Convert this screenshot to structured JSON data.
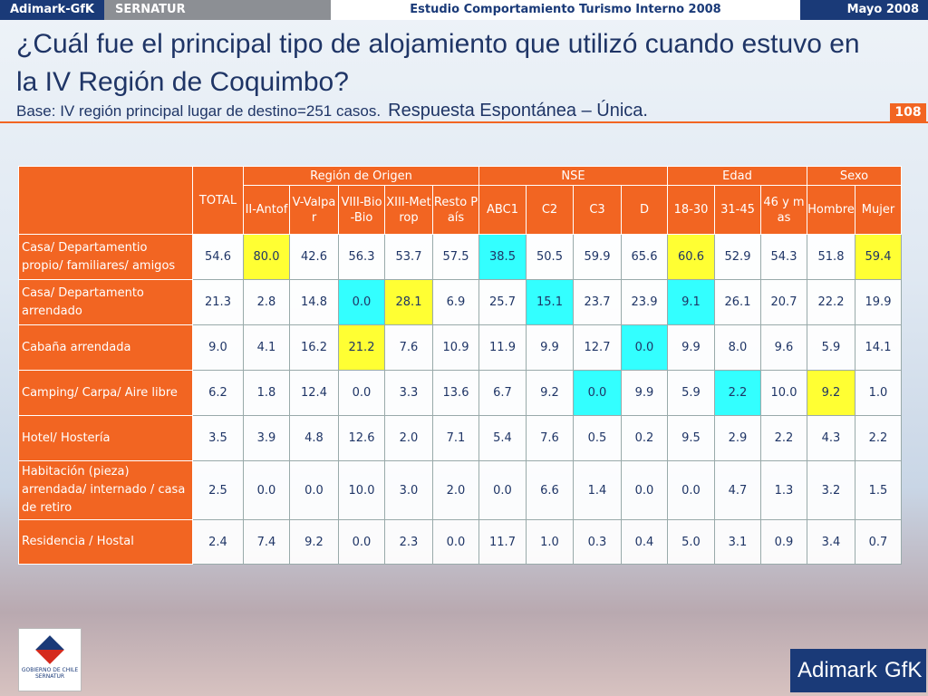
{
  "header": {
    "company": "Adimark-GfK",
    "client": "SERNATUR",
    "study": "Estudio Comportamiento Turismo Interno 2008",
    "date": "Mayo 2008"
  },
  "title": "¿Cuál fue el principal tipo de alojamiento que utilizó cuando estuvo en la IV Región de Coquimbo?",
  "subtitle": {
    "base": "Base: IV región principal lugar de destino=251 casos.",
    "note": "Respuesta Espontánea – Única."
  },
  "page_number": "108",
  "table": {
    "total_header": "TOTAL",
    "groups": [
      {
        "label": "Región de Origen",
        "span": 5
      },
      {
        "label": "NSE",
        "span": 4
      },
      {
        "label": "Edad",
        "span": 3
      },
      {
        "label": "Sexo",
        "span": 2
      }
    ],
    "columns": [
      "II-Antof",
      "V-Valpar",
      "VIII-Bio-Bio",
      "XIII-Metrop",
      "Resto País",
      "ABC1",
      "C2",
      "C3",
      "D",
      "18-30",
      "31-45",
      "46 y mas",
      "Hombre",
      "Mujer"
    ],
    "rows": [
      {
        "label": "Casa/ Departamentio propio/ familiares/ amigos",
        "values": [
          "54.6",
          "80.0",
          "42.6",
          "56.3",
          "53.7",
          "57.5",
          "38.5",
          "50.5",
          "59.9",
          "65.6",
          "60.6",
          "52.9",
          "54.3",
          "51.8",
          "59.4"
        ]
      },
      {
        "label": "Casa/ Departamento arrendado",
        "values": [
          "21.3",
          "2.8",
          "14.8",
          "0.0",
          "28.1",
          "6.9",
          "25.7",
          "15.1",
          "23.7",
          "23.9",
          "9.1",
          "26.1",
          "20.7",
          "22.2",
          "19.9"
        ]
      },
      {
        "label": "Cabaña arrendada",
        "values": [
          "9.0",
          "4.1",
          "16.2",
          "21.2",
          "7.6",
          "10.9",
          "11.9",
          "9.9",
          "12.7",
          "0.0",
          "9.9",
          "8.0",
          "9.6",
          "5.9",
          "14.1"
        ]
      },
      {
        "label": "Camping/ Carpa/ Aire libre",
        "values": [
          "6.2",
          "1.8",
          "12.4",
          "0.0",
          "3.3",
          "13.6",
          "6.7",
          "9.2",
          "0.0",
          "9.9",
          "5.9",
          "2.2",
          "10.0",
          "9.2",
          "1.0"
        ]
      },
      {
        "label": "Hotel/ Hostería",
        "values": [
          "3.5",
          "3.9",
          "4.8",
          "12.6",
          "2.0",
          "7.1",
          "5.4",
          "7.6",
          "0.5",
          "0.2",
          "9.5",
          "2.9",
          "2.2",
          "4.3",
          "2.2"
        ]
      },
      {
        "label": "Habitación (pieza) arrendada/ internado / casa de retiro",
        "values": [
          "2.5",
          "0.0",
          "0.0",
          "10.0",
          "3.0",
          "2.0",
          "0.0",
          "6.6",
          "1.4",
          "0.0",
          "0.0",
          "4.7",
          "1.3",
          "3.2",
          "1.5"
        ]
      },
      {
        "label": "Residencia / Hostal",
        "values": [
          "2.4",
          "7.4",
          "9.2",
          "0.0",
          "2.3",
          "0.0",
          "11.7",
          "1.0",
          "0.3",
          "0.4",
          "5.0",
          "3.1",
          "0.9",
          "3.4",
          "0.7"
        ]
      }
    ],
    "highlights": {
      "#ffff33": [
        [
          0,
          1
        ],
        [
          0,
          10
        ],
        [
          0,
          14
        ],
        [
          1,
          4
        ],
        [
          2,
          3
        ],
        [
          3,
          13
        ]
      ],
      "#33ffff": [
        [
          0,
          6
        ],
        [
          1,
          3
        ],
        [
          1,
          7
        ],
        [
          1,
          10
        ],
        [
          2,
          9
        ],
        [
          3,
          8
        ],
        [
          3,
          11
        ]
      ]
    }
  },
  "logos": {
    "gobierno": "GOBIERNO DE CHILE",
    "sernatur": "SERNATUR",
    "adimark": "Adimark",
    "gfk": "GfK"
  }
}
